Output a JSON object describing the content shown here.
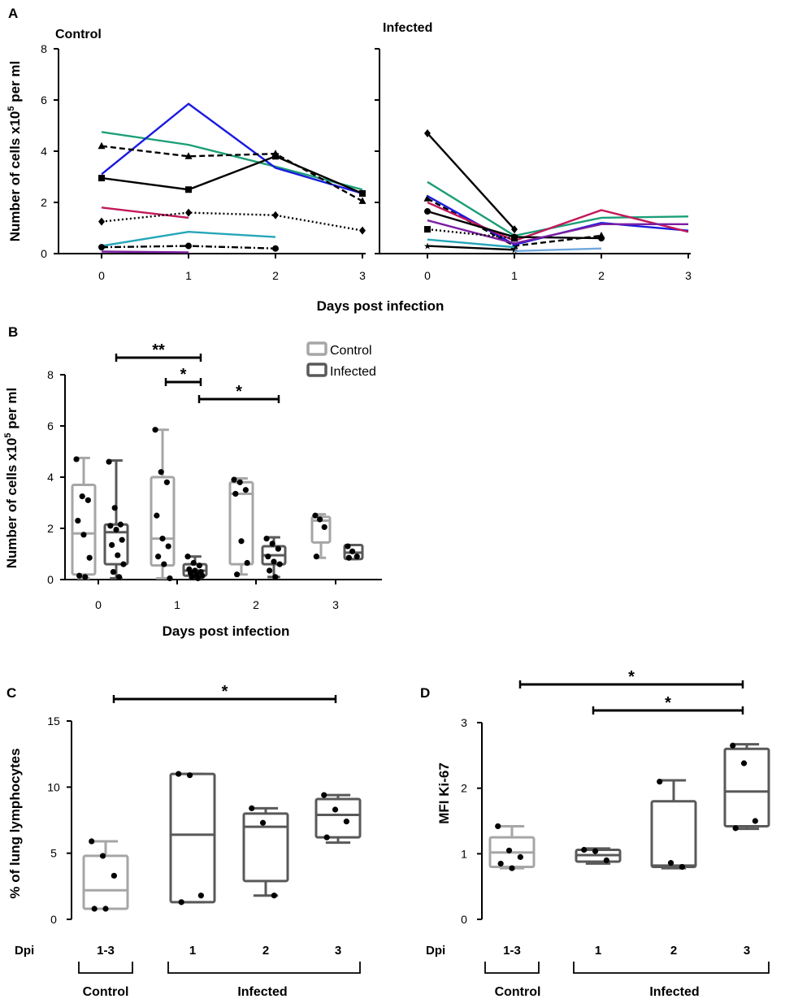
{
  "colors": {
    "control_box": "#a6a6a6",
    "infected_box": "#595959",
    "green": "#1b9e77",
    "blue": "#1a1ae0",
    "magenta": "#c2185b",
    "teal": "#26a6b8",
    "purple": "#7b1fa2",
    "lightblue": "#6fa8dc",
    "black": "#000000"
  },
  "chart_data": [
    {
      "panel": "A",
      "type": "line",
      "title": "Control",
      "xlabel": "Days post infection",
      "ylabel": "Number of cells x10",
      "ylabel_sup": "5",
      "ylabel_tail": " per ml",
      "x_ticks": [
        "0",
        "1",
        "2",
        "3"
      ],
      "y_ticks": [
        "0",
        "2",
        "4",
        "6",
        "8"
      ],
      "ylim": [
        0,
        8
      ],
      "series": [
        {
          "color": "green",
          "dash": "solid",
          "marker": "none",
          "x": [
            0,
            1,
            2,
            3
          ],
          "y": [
            4.75,
            4.25,
            3.4,
            2.5
          ]
        },
        {
          "color": "blue",
          "dash": "solid",
          "marker": "none",
          "x": [
            0,
            1,
            2,
            3
          ],
          "y": [
            3.1,
            5.85,
            3.35,
            2.35
          ]
        },
        {
          "color": "black",
          "dash": "dashed",
          "marker": "triangle",
          "x": [
            0,
            1,
            2,
            3
          ],
          "y": [
            4.2,
            3.8,
            3.9,
            2.05
          ]
        },
        {
          "color": "black",
          "dash": "solid",
          "marker": "square",
          "x": [
            0,
            1,
            2,
            3
          ],
          "y": [
            2.95,
            2.5,
            3.8,
            2.35
          ]
        },
        {
          "color": "magenta",
          "dash": "solid",
          "marker": "none",
          "x": [
            0,
            1
          ],
          "y": [
            1.8,
            1.4
          ]
        },
        {
          "color": "black",
          "dash": "dotted",
          "marker": "diamond",
          "x": [
            0,
            1,
            2,
            3
          ],
          "y": [
            1.25,
            1.6,
            1.5,
            0.9
          ]
        },
        {
          "color": "teal",
          "dash": "solid",
          "marker": "none",
          "x": [
            0,
            1,
            2
          ],
          "y": [
            0.3,
            0.85,
            0.65
          ]
        },
        {
          "color": "black",
          "dash": "dashdot",
          "marker": "circle",
          "x": [
            0,
            1,
            2
          ],
          "y": [
            0.25,
            0.3,
            0.2
          ]
        },
        {
          "color": "purple",
          "dash": "solid",
          "marker": "none",
          "x": [
            0,
            1
          ],
          "y": [
            0.08,
            0.05
          ]
        }
      ]
    },
    {
      "panel": "A",
      "type": "line",
      "title": "Infected",
      "x_ticks": [
        "0",
        "1",
        "2",
        "3"
      ],
      "ylim": [
        0,
        8
      ],
      "series": [
        {
          "color": "black",
          "dash": "solid",
          "marker": "diamond",
          "x": [
            0,
            1
          ],
          "y": [
            4.7,
            0.95
          ]
        },
        {
          "color": "green",
          "dash": "solid",
          "marker": "none",
          "x": [
            0,
            1,
            2,
            3
          ],
          "y": [
            2.8,
            0.7,
            1.4,
            1.45
          ]
        },
        {
          "color": "black",
          "dash": "dashed",
          "marker": "triangle",
          "x": [
            0,
            1,
            2
          ],
          "y": [
            2.15,
            0.3,
            0.7
          ]
        },
        {
          "color": "blue",
          "dash": "solid",
          "marker": "none",
          "x": [
            0,
            1,
            2,
            3
          ],
          "y": [
            2.25,
            0.35,
            1.2,
            0.9
          ]
        },
        {
          "color": "magenta",
          "dash": "solid",
          "marker": "none",
          "x": [
            0,
            1,
            2,
            3
          ],
          "y": [
            2.0,
            0.5,
            1.7,
            0.85
          ]
        },
        {
          "color": "black",
          "dash": "solid",
          "marker": "circle",
          "x": [
            0,
            1,
            2
          ],
          "y": [
            1.65,
            0.65,
            0.6
          ]
        },
        {
          "color": "purple",
          "dash": "solid",
          "marker": "none",
          "x": [
            0,
            1,
            2,
            3
          ],
          "y": [
            1.3,
            0.4,
            1.15,
            1.15
          ]
        },
        {
          "color": "black",
          "dash": "dotted",
          "marker": "square",
          "x": [
            0,
            1
          ],
          "y": [
            0.95,
            0.6
          ]
        },
        {
          "color": "teal",
          "dash": "solid",
          "marker": "none",
          "x": [
            0,
            1
          ],
          "y": [
            0.55,
            0.25
          ]
        },
        {
          "color": "black",
          "dash": "solid",
          "marker": "star",
          "x": [
            0,
            1
          ],
          "y": [
            0.3,
            0.15
          ]
        },
        {
          "color": "lightblue",
          "dash": "solid",
          "marker": "none",
          "x": [
            1,
            2
          ],
          "y": [
            0.1,
            0.2
          ]
        }
      ]
    },
    {
      "panel": "B",
      "type": "box",
      "xlabel": "Days post infection",
      "ylabel": "Number of cells x10",
      "ylabel_sup": "5",
      "ylabel_tail": " per ml",
      "categories": [
        "0",
        "1",
        "2",
        "3"
      ],
      "y_ticks": [
        "0",
        "2",
        "4",
        "6",
        "8"
      ],
      "ylim": [
        0,
        8
      ],
      "legend": {
        "position": "top-right",
        "items": [
          "Control",
          "Infected"
        ]
      },
      "boxes": [
        {
          "day": 0,
          "group": "Control",
          "min": 0.05,
          "q1": 0.2,
          "median": 1.8,
          "q3": 3.7,
          "max": 4.75,
          "points": [
            4.7,
            3.25,
            3.1,
            2.3,
            1.75,
            0.85,
            0.15,
            0.1
          ]
        },
        {
          "day": 0,
          "group": "Infected",
          "min": 0.05,
          "q1": 0.6,
          "median": 1.85,
          "q3": 2.15,
          "max": 4.65,
          "points": [
            4.6,
            2.8,
            2.15,
            2.1,
            1.95,
            1.55,
            1.35,
            0.95,
            0.6,
            0.3,
            0.1
          ]
        },
        {
          "day": 1,
          "group": "Control",
          "min": 0.05,
          "q1": 0.55,
          "median": 1.6,
          "q3": 4.0,
          "max": 5.85,
          "points": [
            5.85,
            4.2,
            3.8,
            2.5,
            1.6,
            1.3,
            0.9,
            0.6,
            0.05
          ]
        },
        {
          "day": 1,
          "group": "Infected",
          "min": 0.05,
          "q1": 0.15,
          "median": 0.35,
          "q3": 0.6,
          "max": 0.9,
          "points": [
            0.9,
            0.65,
            0.55,
            0.4,
            0.35,
            0.3,
            0.25,
            0.2,
            0.15,
            0.1,
            0.05
          ]
        },
        {
          "day": 2,
          "group": "Control",
          "min": 0.2,
          "q1": 0.6,
          "median": 3.35,
          "q3": 3.8,
          "max": 3.95,
          "points": [
            3.9,
            3.8,
            3.5,
            3.35,
            1.5,
            0.65,
            0.2
          ]
        },
        {
          "day": 2,
          "group": "Infected",
          "min": 0.1,
          "q1": 0.6,
          "median": 0.95,
          "q3": 1.3,
          "max": 1.65,
          "points": [
            1.6,
            1.4,
            1.2,
            0.9,
            0.7,
            0.6,
            0.35,
            0.1
          ]
        },
        {
          "day": 3,
          "group": "Control",
          "min": 0.85,
          "q1": 1.45,
          "median": 2.3,
          "q3": 2.45,
          "max": 2.55,
          "points": [
            2.5,
            2.35,
            2.05,
            0.9
          ]
        },
        {
          "day": 3,
          "group": "Infected",
          "min": 0.8,
          "q1": 0.8,
          "median": 1.05,
          "q3": 1.35,
          "max": 1.35,
          "points": [
            1.3,
            1.1,
            0.9,
            0.85
          ]
        }
      ],
      "significance": [
        {
          "label": "**",
          "from": "Day 0 Infected",
          "to": "Day 1 Infected"
        },
        {
          "label": "*",
          "from": "Day 1 Control",
          "to": "Day 1 Infected"
        },
        {
          "label": "*",
          "from": "Day 1 Infected",
          "to": "Day 2 Infected"
        }
      ]
    },
    {
      "panel": "C",
      "type": "box",
      "ylabel": "% of lung lymphocytes",
      "y_ticks": [
        "0",
        "5",
        "10",
        "15"
      ],
      "ylim": [
        0,
        15
      ],
      "row_label": "Dpi",
      "categories": [
        "1-3",
        "1",
        "2",
        "3"
      ],
      "group_labels": [
        "Control",
        "Infected"
      ],
      "boxes": [
        {
          "label": "1-3",
          "group": "Control",
          "min": 0.8,
          "q1": 0.8,
          "median": 2.2,
          "q3": 4.8,
          "max": 5.9,
          "points": [
            5.9,
            4.8,
            3.3,
            0.8,
            0.8
          ]
        },
        {
          "label": "1",
          "group": "Infected",
          "min": 1.3,
          "q1": 1.3,
          "median": 6.4,
          "q3": 11.0,
          "max": 11.0,
          "points": [
            11.0,
            10.9,
            1.8,
            1.3
          ]
        },
        {
          "label": "2",
          "group": "Infected",
          "min": 1.8,
          "q1": 2.9,
          "median": 7.0,
          "q3": 8.0,
          "max": 8.4,
          "points": [
            8.4,
            7.3,
            1.8
          ]
        },
        {
          "label": "3",
          "group": "Infected",
          "min": 5.8,
          "q1": 6.2,
          "median": 7.9,
          "q3": 9.1,
          "max": 9.4,
          "points": [
            9.4,
            8.3,
            7.4,
            6.2
          ]
        }
      ],
      "significance": [
        {
          "label": "*",
          "from": "1-3",
          "to": "3"
        }
      ]
    },
    {
      "panel": "D",
      "type": "box",
      "ylabel": "MFI Ki-67",
      "y_ticks": [
        "0",
        "1",
        "2",
        "3"
      ],
      "ylim": [
        0,
        3
      ],
      "row_label": "Dpi",
      "categories": [
        "1-3",
        "1",
        "2",
        "3"
      ],
      "group_labels": [
        "Control",
        "Infected"
      ],
      "boxes": [
        {
          "label": "1-3",
          "group": "Control",
          "min": 0.78,
          "q1": 0.8,
          "median": 1.02,
          "q3": 1.25,
          "max": 1.42,
          "points": [
            1.42,
            1.05,
            0.95,
            0.85,
            0.78
          ]
        },
        {
          "label": "1",
          "group": "Infected",
          "min": 0.85,
          "q1": 0.88,
          "median": 0.98,
          "q3": 1.06,
          "max": 1.08,
          "points": [
            1.06,
            1.04,
            0.9
          ]
        },
        {
          "label": "2",
          "group": "Infected",
          "min": 0.78,
          "q1": 0.8,
          "median": 0.82,
          "q3": 1.8,
          "max": 2.12,
          "points": [
            2.1,
            0.86,
            0.8
          ]
        },
        {
          "label": "3",
          "group": "Infected",
          "min": 1.38,
          "q1": 1.42,
          "median": 1.95,
          "q3": 2.6,
          "max": 2.67,
          "points": [
            2.65,
            2.38,
            1.5,
            1.39
          ]
        }
      ],
      "significance": [
        {
          "label": "*",
          "from": "1-3",
          "to": "3"
        },
        {
          "label": "*",
          "from": "1",
          "to": "3"
        }
      ]
    }
  ],
  "panels": {
    "A": {
      "letter": "A",
      "control_title": "Control",
      "infected_title": "Infected",
      "xlabel": "Days post infection"
    },
    "B": {
      "letter": "B",
      "xlabel": "Days post infection",
      "legend_control": "Control",
      "legend_infected": "Infected"
    },
    "C": {
      "letter": "C",
      "control_group": "Control",
      "infected_group": "Infected",
      "dpi": "Dpi"
    },
    "D": {
      "letter": "D",
      "control_group": "Control",
      "infected_group": "Infected",
      "dpi": "Dpi"
    }
  }
}
